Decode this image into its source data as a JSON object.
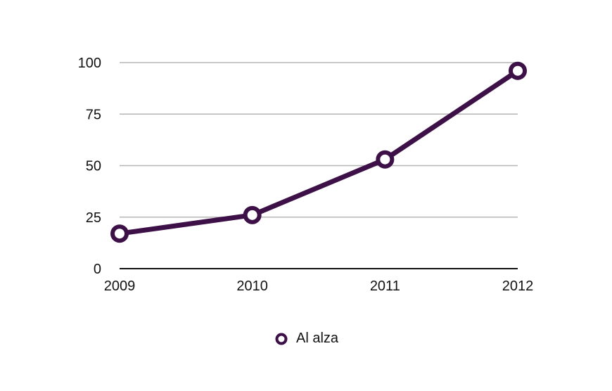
{
  "chart_data": {
    "type": "line",
    "x": [
      "2009",
      "2010",
      "2011",
      "2012"
    ],
    "series": [
      {
        "name": "Al alza",
        "values": [
          17,
          26,
          53,
          96
        ]
      }
    ],
    "ylim": [
      0,
      100
    ],
    "yticks": [
      0,
      25,
      50,
      75,
      100
    ],
    "grid": true,
    "legend": "bottom",
    "colors": {
      "series": "#3d1147",
      "grid": "#b5b5b5",
      "axis": "#111111"
    }
  }
}
